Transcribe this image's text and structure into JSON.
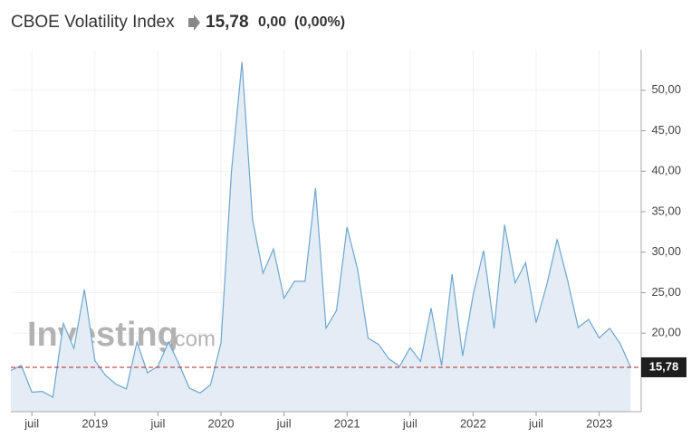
{
  "header": {
    "title": "CBOE Volatility Index",
    "price": "15,78",
    "change": "0,00",
    "change_pct": "(0,00%)"
  },
  "chart_data": {
    "type": "area",
    "x": [
      "2018-05",
      "2018-06",
      "2018-07",
      "2018-08",
      "2018-09",
      "2018-10",
      "2018-11",
      "2018-12",
      "2019-01",
      "2019-02",
      "2019-03",
      "2019-04",
      "2019-05",
      "2019-06",
      "2019-07",
      "2019-08",
      "2019-09",
      "2019-10",
      "2019-11",
      "2019-12",
      "2020-01",
      "2020-02",
      "2020-03",
      "2020-04",
      "2020-05",
      "2020-06",
      "2020-07",
      "2020-08",
      "2020-09",
      "2020-10",
      "2020-11",
      "2020-12",
      "2021-01",
      "2021-02",
      "2021-03",
      "2021-04",
      "2021-05",
      "2021-06",
      "2021-07",
      "2021-08",
      "2021-09",
      "2021-10",
      "2021-11",
      "2021-12",
      "2022-01",
      "2022-02",
      "2022-03",
      "2022-04",
      "2022-05",
      "2022-06",
      "2022-07",
      "2022-08",
      "2022-09",
      "2022-10",
      "2022-11",
      "2022-12",
      "2023-01",
      "2023-02",
      "2023-03",
      "2023-04"
    ],
    "values": [
      15.4,
      16.0,
      12.7,
      12.8,
      12.1,
      21.2,
      18.1,
      25.4,
      16.6,
      14.8,
      13.7,
      13.1,
      18.9,
      15.1,
      15.9,
      18.9,
      16.2,
      13.2,
      12.6,
      13.6,
      18.8,
      40.0,
      53.5,
      34.1,
      27.4,
      30.4,
      24.3,
      26.4,
      26.4,
      37.9,
      20.6,
      22.8,
      33.1,
      27.9,
      19.4,
      18.6,
      16.8,
      15.9,
      18.2,
      16.5,
      23.1,
      16.0,
      27.3,
      17.2,
      24.7,
      30.2,
      20.6,
      33.4,
      26.2,
      28.7,
      21.3,
      25.9,
      31.6,
      26.5,
      20.7,
      21.7,
      19.4,
      20.6,
      18.7,
      15.78
    ],
    "color": "#6ea6cf",
    "fill": "#e4edf5",
    "ylim": [
      10.3,
      55
    ],
    "yticks": [
      {
        "value": 20,
        "label": "20,00"
      },
      {
        "value": 25,
        "label": "25,00"
      },
      {
        "value": 30,
        "label": "30,00"
      },
      {
        "value": 35,
        "label": "35,00"
      },
      {
        "value": 40,
        "label": "40,00"
      },
      {
        "value": 45,
        "label": "45,00"
      },
      {
        "value": 50,
        "label": "50,00"
      }
    ],
    "xlim": [
      "2018-05",
      "2023-05"
    ],
    "xticks": [
      {
        "value": "2018-07",
        "label": "juil"
      },
      {
        "value": "2019-01",
        "label": "2019"
      },
      {
        "value": "2019-07",
        "label": "juil"
      },
      {
        "value": "2020-01",
        "label": "2020"
      },
      {
        "value": "2020-07",
        "label": "juil"
      },
      {
        "value": "2021-01",
        "label": "2021"
      },
      {
        "value": "2021-07",
        "label": "juil"
      },
      {
        "value": "2022-01",
        "label": "2022"
      },
      {
        "value": "2022-07",
        "label": "juil"
      },
      {
        "value": "2023-01",
        "label": "2023"
      }
    ],
    "grid": true,
    "last_value": {
      "value": 15.78,
      "label": "15,78"
    },
    "watermark": {
      "brand": "Investing",
      "suffix": ".com"
    }
  }
}
